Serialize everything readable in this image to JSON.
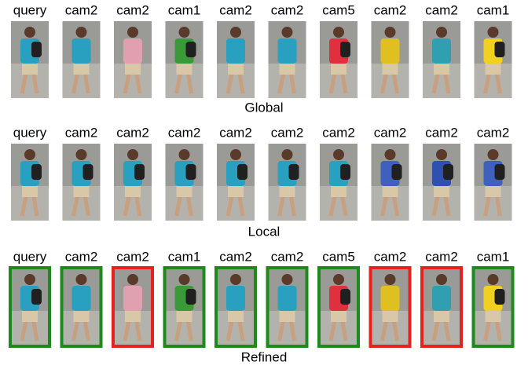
{
  "rows": [
    {
      "labels": [
        "query",
        "cam2",
        "cam2",
        "cam1",
        "cam2",
        "cam2",
        "cam5",
        "cam2",
        "cam2",
        "cam1"
      ],
      "caption": "Global"
    },
    {
      "labels": [
        "query",
        "cam2",
        "cam2",
        "cam2",
        "cam2",
        "cam2",
        "cam2",
        "cam2",
        "cam2",
        "cam2"
      ],
      "caption": "Local"
    },
    {
      "labels": [
        "query",
        "cam2",
        "cam2",
        "cam1",
        "cam2",
        "cam2",
        "cam5",
        "cam2",
        "cam2",
        "cam1"
      ],
      "caption": "Refined",
      "borders": [
        "#1e8a1e",
        "#1e8a1e",
        "#e42222",
        "#1e8a1e",
        "#1e8a1e",
        "#1e8a1e",
        "#1e8a1e",
        "#e42222",
        "#e42222",
        "#1e8a1e"
      ]
    }
  ]
}
